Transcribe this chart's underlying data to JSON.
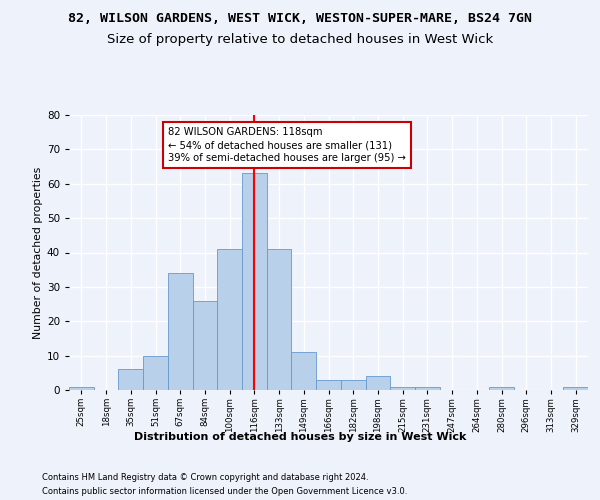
{
  "title1": "82, WILSON GARDENS, WEST WICK, WESTON-SUPER-MARE, BS24 7GN",
  "title2": "Size of property relative to detached houses in West Wick",
  "xlabel": "Distribution of detached houses by size in West Wick",
  "ylabel": "Number of detached properties",
  "bar_labels": [
    "25sqm",
    "18sqm",
    "35sqm",
    "51sqm",
    "67sqm",
    "84sqm",
    "100sqm",
    "116sqm",
    "133sqm",
    "149sqm",
    "166sqm",
    "182sqm",
    "198sqm",
    "215sqm",
    "231sqm",
    "247sqm",
    "264sqm",
    "280sqm",
    "296sqm",
    "313sqm",
    "329sqm"
  ],
  "counts": [
    1,
    0,
    6,
    10,
    34,
    26,
    41,
    63,
    41,
    11,
    3,
    3,
    4,
    1,
    1,
    0,
    0,
    1,
    0,
    0,
    1
  ],
  "bar_color": "#b8d0ea",
  "bar_edge_color": "#6699cc",
  "red_line_x": 7,
  "annotation_text": "82 WILSON GARDENS: 118sqm\n← 54% of detached houses are smaller (131)\n39% of semi-detached houses are larger (95) →",
  "ylim": [
    0,
    80
  ],
  "yticks": [
    0,
    10,
    20,
    30,
    40,
    50,
    60,
    70,
    80
  ],
  "footer1": "Contains HM Land Registry data © Crown copyright and database right 2024.",
  "footer2": "Contains public sector information licensed under the Open Government Licence v3.0.",
  "bg_color": "#eef2fb",
  "grid_color": "#ffffff",
  "title1_fontsize": 9.5,
  "title2_fontsize": 9.5,
  "annotation_box_color": "#ffffff",
  "annotation_box_edge": "#cc0000",
  "num_bins": 21
}
